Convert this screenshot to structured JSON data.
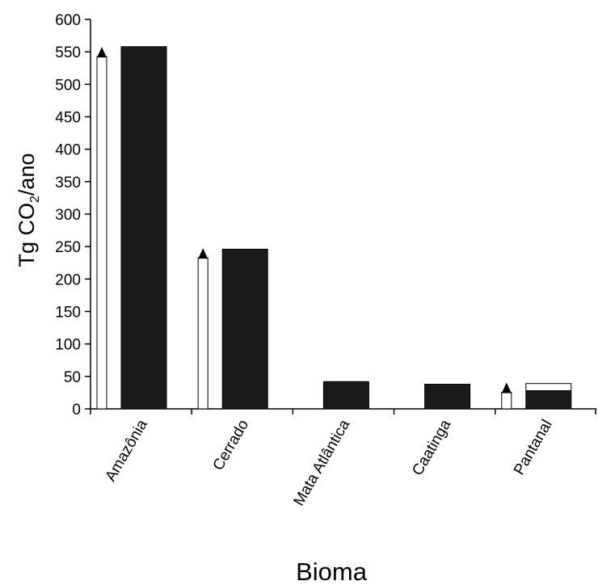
{
  "chart_data": {
    "type": "bar",
    "xlabel": "Bioma",
    "ylabel_main": "Tg CO",
    "ylabel_sub": "2",
    "ylabel_rest": "/ano",
    "ylim": [
      0,
      600
    ],
    "yticks": [
      0,
      50,
      100,
      150,
      200,
      250,
      300,
      350,
      400,
      450,
      500,
      550,
      600
    ],
    "categories": [
      "Amazônia",
      "Cerrado",
      "Mata Atlântica",
      "Caatinga",
      "Pantanal"
    ],
    "values": [
      558,
      246,
      42,
      38,
      28
    ],
    "upper_range_box": [
      null,
      null,
      null,
      null,
      39
    ],
    "range_arrows": [
      {
        "category": "Amazônia",
        "from": 0,
        "to": 555
      },
      {
        "category": "Cerrado",
        "from": 0,
        "to": 245
      },
      {
        "category": "Mata Atlântica",
        "from": null,
        "to": null
      },
      {
        "category": "Caatinga",
        "from": null,
        "to": null
      },
      {
        "category": "Pantanal",
        "from": 0,
        "to": 38
      }
    ],
    "bar_color": "#1a1a1a",
    "grid": false,
    "legend": "none"
  }
}
